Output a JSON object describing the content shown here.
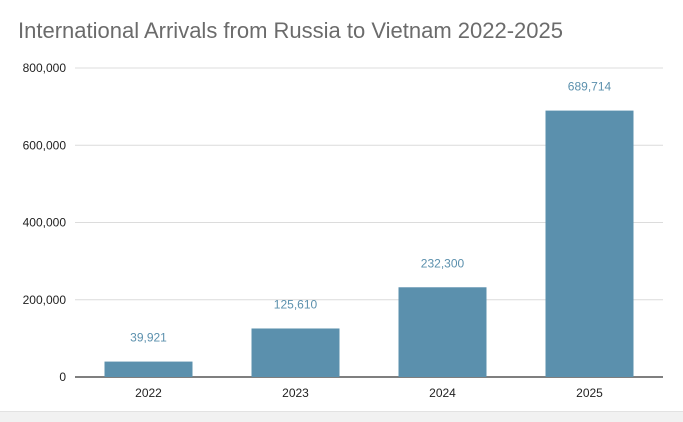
{
  "chart_data": {
    "type": "bar",
    "title": "International Arrivals from Russia to Vietnam 2022-2025",
    "categories": [
      "2022",
      "2023",
      "2024",
      "2025"
    ],
    "values": [
      39921,
      125610,
      232300,
      689714
    ],
    "value_labels": [
      "39,921",
      "125,610",
      "232,300",
      "689,714"
    ],
    "y_ticks": [
      0,
      200000,
      400000,
      600000,
      800000
    ],
    "y_tick_labels": [
      "0",
      "200,000",
      "400,000",
      "600,000",
      "800,000"
    ],
    "ylim": [
      0,
      800000
    ],
    "grid": true,
    "legend": "none",
    "colors": {
      "bar": "#5b90ad",
      "data_label": "#5b90ad",
      "title": "#6b6b6b",
      "grid": "#dcdcdc",
      "axis": "#333333"
    }
  }
}
